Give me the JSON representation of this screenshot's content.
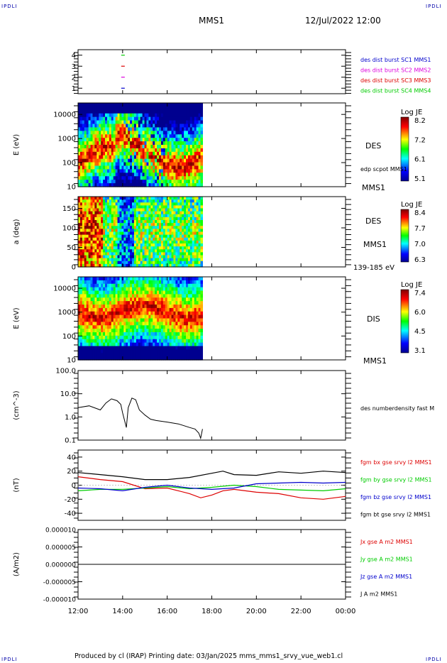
{
  "corners": {
    "top_left": "IPDLI",
    "top_right": "IPDLI",
    "bottom_left": "IPDLI",
    "bottom_right": "IPDLI"
  },
  "header": {
    "spacecraft": "MMS1",
    "datetime": "12/Jul/2022 12:00"
  },
  "footer": {
    "text": "Produced by cl (IRAP)   Printing date: 03/Jan/2025   mms_mms1_srvy_vue_web1.cl"
  },
  "colors": {
    "red": "#dd0000",
    "green": "#00cc00",
    "blue": "#0000cc",
    "magenta": "#dd00dd",
    "black": "#000000"
  },
  "chart_data": [
    {
      "type": "scatter",
      "panel": "burst-availability",
      "yticks": [
        "1",
        "2",
        "3",
        "4"
      ],
      "ylim": [
        0.5,
        4.5
      ],
      "legend": [
        {
          "label": "des dist burst SC1 MMS1",
          "color": "#0000cc"
        },
        {
          "label": "des dist burst SC2 MMS2",
          "color": "#dd00dd"
        },
        {
          "label": "des dist burst SC3 MMS3",
          "color": "#dd0000"
        },
        {
          "label": "des dist burst SC4 MMS4",
          "color": "#00cc00"
        }
      ],
      "points": [
        {
          "x": "14:00",
          "y": 1,
          "color": "#0000cc"
        },
        {
          "x": "14:00",
          "y": 2,
          "color": "#dd00dd"
        },
        {
          "x": "14:00",
          "y": 3,
          "color": "#dd0000"
        },
        {
          "x": "14:00",
          "y": 4,
          "color": "#00cc00"
        }
      ]
    },
    {
      "type": "heatmap",
      "panel": "des-energy",
      "ylabel": "E (eV)",
      "yscale": "log",
      "yticks": [
        "10",
        "100",
        "1000",
        "10000"
      ],
      "ylim": [
        10,
        30000
      ],
      "data_end": "17:35",
      "colorbar": {
        "title": "Log JE",
        "ticks": [
          "8.2",
          "7.2",
          "6.1",
          "5.1"
        ]
      },
      "right_labels": [
        "DES",
        "edp scpot MMS1",
        "MMS1"
      ]
    },
    {
      "type": "heatmap",
      "panel": "des-pitch-angle",
      "ylabel": "a (deg)",
      "yticks": [
        "0",
        "50",
        "100",
        "150"
      ],
      "ylim": [
        0,
        180
      ],
      "data_end": "17:35",
      "colorbar": {
        "title": "Log JE",
        "ticks": [
          "8.4",
          "7.7",
          "7.0",
          "6.3"
        ]
      },
      "right_labels": [
        "DES",
        "MMS1",
        "139-185 eV"
      ]
    },
    {
      "type": "heatmap",
      "panel": "dis-energy",
      "ylabel": "E (eV)",
      "yscale": "log",
      "yticks": [
        "10",
        "100",
        "1000",
        "10000"
      ],
      "ylim": [
        10,
        30000
      ],
      "data_end": "17:35",
      "colorbar": {
        "title": "Log JE",
        "ticks": [
          "7.4",
          "6.0",
          "4.5",
          "3.1"
        ]
      },
      "right_labels": [
        "DIS",
        "MMS1"
      ]
    },
    {
      "type": "line",
      "panel": "density",
      "ylabel": "(cm^-3)",
      "yscale": "log",
      "yticks": [
        "0.1",
        "1.0",
        "10.0",
        "100.0"
      ],
      "ylim": [
        0.1,
        100
      ],
      "legend": [
        {
          "label": "des numberdensity fast M",
          "color": "#000000"
        }
      ],
      "series": [
        {
          "name": "des numberdensity fast M",
          "color": "#000000",
          "x": [
            "12:00",
            "12:30",
            "13:00",
            "13:15",
            "13:30",
            "13:45",
            "13:55",
            "14:00",
            "14:10",
            "14:15",
            "14:25",
            "14:35",
            "14:45",
            "15:00",
            "15:15",
            "15:30",
            "16:00",
            "16:30",
            "17:00",
            "17:15",
            "17:25",
            "17:30",
            "17:35"
          ],
          "y": [
            2.5,
            3.0,
            2.0,
            4.0,
            6.0,
            5.0,
            3.5,
            1.5,
            0.35,
            2.5,
            6.5,
            5.5,
            2.0,
            1.2,
            0.8,
            0.7,
            0.6,
            0.5,
            0.35,
            0.3,
            0.2,
            0.12,
            0.3
          ]
        }
      ]
    },
    {
      "type": "line",
      "panel": "magnetic-field",
      "ylabel": "(nT)",
      "yticks": [
        "-40",
        "-20",
        "0",
        "20",
        "40"
      ],
      "ylim": [
        -50,
        50
      ],
      "series": [
        {
          "name": "fgm bx gse srvy l2 MMS1",
          "color": "#dd0000",
          "x": [
            "12:00",
            "13:00",
            "14:00",
            "15:00",
            "16:00",
            "16:30",
            "17:00",
            "17:30",
            "18:00",
            "18:30",
            "19:00",
            "20:00",
            "21:00",
            "22:00",
            "23:00",
            "00:00"
          ],
          "y": [
            12,
            8,
            5,
            -5,
            -4,
            -8,
            -12,
            -18,
            -14,
            -8,
            -6,
            -10,
            -12,
            -18,
            -20,
            -16
          ]
        },
        {
          "name": "fgm by gse srvy l2 MMS1",
          "color": "#00cc00",
          "x": [
            "12:00",
            "13:00",
            "14:00",
            "15:00",
            "16:00",
            "17:00",
            "18:00",
            "19:00",
            "20:00",
            "21:00",
            "22:00",
            "23:00",
            "00:00"
          ],
          "y": [
            -8,
            -6,
            -6,
            -4,
            -2,
            -5,
            -3,
            0,
            -2,
            -6,
            -7,
            -8,
            -5
          ]
        },
        {
          "name": "fgm bz gse srvy l2 MMS1",
          "color": "#0000cc",
          "x": [
            "12:00",
            "13:00",
            "14:00",
            "15:00",
            "16:00",
            "17:00",
            "18:00",
            "19:00",
            "20:00",
            "21:00",
            "22:00",
            "23:00",
            "00:00"
          ],
          "y": [
            -4,
            -5,
            -8,
            -3,
            0,
            -4,
            -6,
            -4,
            2,
            3,
            4,
            3,
            4
          ]
        },
        {
          "name": "fgm bt gse srvy l2 MMS1",
          "color": "#000000",
          "x": [
            "12:00",
            "13:00",
            "14:00",
            "15:00",
            "16:00",
            "17:00",
            "18:00",
            "18:30",
            "19:00",
            "20:00",
            "21:00",
            "22:00",
            "23:00",
            "00:00"
          ],
          "y": [
            18,
            15,
            12,
            8,
            8,
            11,
            17,
            20,
            15,
            14,
            19,
            17,
            20,
            18
          ]
        }
      ]
    },
    {
      "type": "line",
      "panel": "current-density",
      "ylabel": "(A/m2)",
      "yticks": [
        "-0.000010",
        "-0.000005",
        "0.000000",
        "0.000005",
        "0.000010"
      ],
      "ylim": [
        -1e-05,
        1e-05
      ],
      "series": [
        {
          "name": "Jx gse A m2 MMS1",
          "color": "#dd0000",
          "x": [
            "12:00",
            "00:00"
          ],
          "y": [
            0,
            0
          ]
        },
        {
          "name": "Jy gse A m2 MMS1",
          "color": "#00cc00",
          "x": [
            "12:00",
            "00:00"
          ],
          "y": [
            0,
            0
          ]
        },
        {
          "name": "Jz gse A m2 MMS1",
          "color": "#0000cc",
          "x": [
            "12:00",
            "00:00"
          ],
          "y": [
            0,
            0
          ]
        },
        {
          "name": "J A m2 MMS1",
          "color": "#000000",
          "x": [
            "12:00",
            "00:00"
          ],
          "y": [
            0,
            0
          ]
        }
      ]
    }
  ],
  "xaxis": {
    "ticks": [
      "12:00",
      "14:00",
      "16:00",
      "18:00",
      "20:00",
      "22:00",
      "00:00"
    ],
    "range": [
      "12:00",
      "00:00"
    ]
  }
}
